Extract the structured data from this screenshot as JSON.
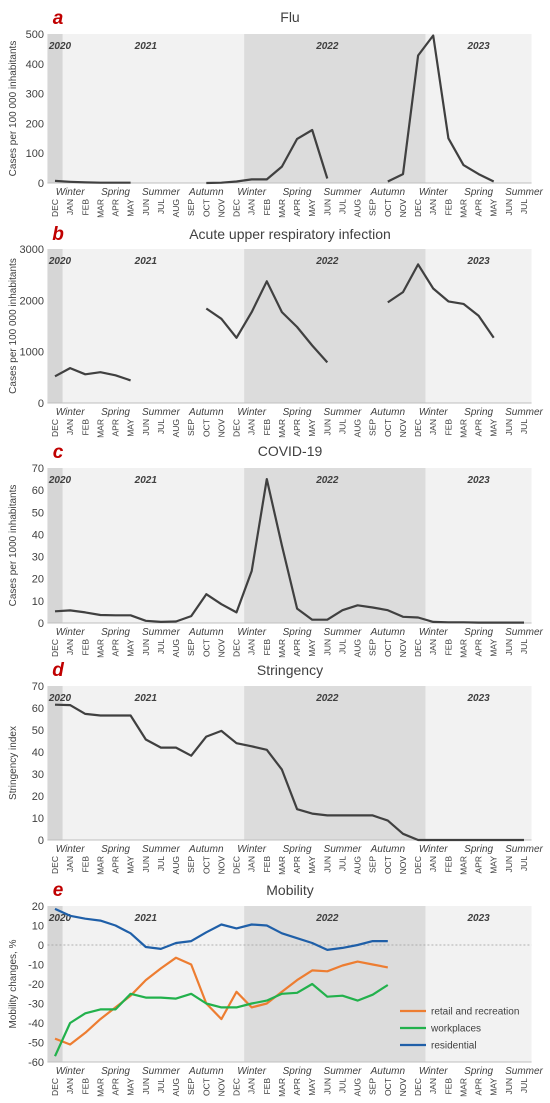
{
  "months": [
    "DEC",
    "JAN",
    "FEB",
    "MAR",
    "APR",
    "MAY",
    "JUN",
    "JUL",
    "AUG",
    "SEP",
    "OCT",
    "NOV",
    "DEC",
    "JAN",
    "FEB",
    "MAR",
    "APR",
    "MAY",
    "JUN",
    "JUL",
    "AUG",
    "SEP",
    "OCT",
    "NOV",
    "DEC",
    "JAN",
    "FEB",
    "MAR",
    "APR",
    "MAY",
    "JUN",
    "JUL"
  ],
  "seasons": [
    "Winter",
    "Spring",
    "Summer",
    "Autumn",
    "Winter",
    "Spring",
    "Summer",
    "Autumn",
    "Winter",
    "Spring",
    "Summer"
  ],
  "years": [
    "2020",
    "2021",
    "2022",
    "2023"
  ],
  "colors": {
    "line": "#404040",
    "retail": "#ed7d31",
    "workplaces": "#22b14c",
    "residential": "#1f5fa8",
    "band_light": "#f2f2f2",
    "band_2020": "#d6d6d6",
    "band_2022": "#dcdcdc"
  },
  "chart_data": [
    {
      "letter": "a",
      "type": "line",
      "title": "Flu",
      "ylabel": "Cases per 100 000 inhabitants",
      "ylim": [
        0,
        500
      ],
      "yticks": [
        0,
        100,
        200,
        300,
        400,
        500
      ],
      "series": [
        {
          "values": [
            7,
            4,
            2,
            1,
            1,
            1,
            null,
            null,
            null,
            null,
            0,
            1,
            5,
            12,
            12,
            55,
            148,
            178,
            15,
            null,
            null,
            null,
            5,
            30,
            428,
            495,
            150,
            60,
            30,
            5,
            null,
            null
          ]
        }
      ]
    },
    {
      "letter": "b",
      "type": "line",
      "title": "Acute upper respiratory infection",
      "ylabel": "Cases per 100 000 inhabitants",
      "ylim": [
        0,
        3000
      ],
      "yticks": [
        0,
        1000,
        2000,
        3000
      ],
      "series": [
        {
          "values": [
            520,
            680,
            560,
            600,
            540,
            440,
            null,
            null,
            null,
            null,
            1840,
            1640,
            1270,
            1770,
            2370,
            1770,
            1480,
            1120,
            790,
            null,
            null,
            null,
            1960,
            2160,
            2700,
            2230,
            1980,
            1930,
            1700,
            1270,
            null,
            null
          ]
        }
      ]
    },
    {
      "letter": "c",
      "type": "line",
      "title": "COVID-19",
      "ylabel": "Cases per 1000 inhabitants",
      "ylim": [
        0,
        70
      ],
      "yticks": [
        0,
        10,
        20,
        30,
        40,
        50,
        60,
        70
      ],
      "series": [
        {
          "values": [
            5.3,
            5.7,
            4.8,
            3.6,
            3.5,
            3.5,
            1,
            0.5,
            0.7,
            3.1,
            13,
            8.5,
            4.8,
            23.5,
            65,
            35,
            6.5,
            1.5,
            1.5,
            5.8,
            8,
            7,
            5.8,
            2.8,
            2.5,
            0.5,
            0.3,
            0.3,
            0.2,
            0.2,
            0.2,
            0.2
          ]
        }
      ]
    },
    {
      "letter": "d",
      "type": "line",
      "title": "Stringency",
      "ylabel": "Stringency index",
      "ylim": [
        0,
        70
      ],
      "yticks": [
        0,
        10,
        20,
        30,
        40,
        50,
        60,
        70
      ],
      "series": [
        {
          "values": [
            61.5,
            61.3,
            57.3,
            56.6,
            56.6,
            56.6,
            45.7,
            42,
            42,
            38.3,
            47,
            49.6,
            44,
            42.6,
            41,
            32,
            14,
            12,
            11.2,
            11.2,
            11.2,
            11.2,
            8.8,
            2.8,
            0,
            0,
            0,
            0,
            0,
            0,
            0,
            0
          ]
        }
      ]
    },
    {
      "letter": "e",
      "type": "line",
      "title": "Mobility",
      "ylabel": "Mobility changes, %",
      "ylim": [
        -60,
        20
      ],
      "yticks": [
        -60,
        -50,
        -40,
        -30,
        -20,
        -10,
        0,
        10,
        20
      ],
      "legend": [
        "retail and recreation",
        "workplaces",
        "residential"
      ],
      "series": [
        {
          "name": "retail and recreation",
          "values": [
            -48,
            -51,
            -45,
            -38,
            -32,
            -26,
            -18,
            -12,
            -6.5,
            -10,
            -30,
            -38,
            -24,
            -32,
            -30,
            -24,
            -18,
            -13,
            -13.5,
            -10.5,
            -8.5,
            -10,
            -11.5,
            null,
            null,
            null,
            null,
            null,
            null,
            null,
            null,
            null
          ]
        },
        {
          "name": "workplaces",
          "values": [
            -57,
            -40,
            -35,
            -33,
            -33,
            -25,
            -27,
            -27,
            -27.5,
            -25,
            -30,
            -32,
            -32,
            -30,
            -28.5,
            -25,
            -24.5,
            -20,
            -26.5,
            -26,
            -28.5,
            -25.5,
            -20.5,
            null,
            null,
            null,
            null,
            null,
            null,
            null,
            null,
            null
          ]
        },
        {
          "name": "residential",
          "values": [
            18.5,
            15,
            13.5,
            12.5,
            10,
            6,
            -1,
            -2,
            1,
            2,
            6.5,
            10.5,
            8.5,
            10.5,
            10,
            6,
            3.5,
            1,
            -2.5,
            -1.5,
            0,
            2,
            2,
            null,
            null,
            null,
            null,
            null,
            null,
            null,
            null,
            null
          ]
        }
      ]
    }
  ]
}
